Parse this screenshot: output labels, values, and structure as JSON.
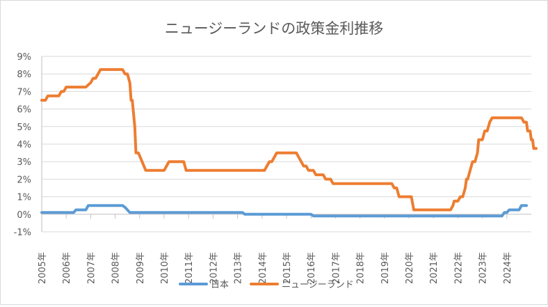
{
  "chart_data": {
    "type": "line",
    "title": "ニュージーランドの政策金利推移",
    "xlabel": "",
    "ylabel": "",
    "ylim": [
      -1,
      9
    ],
    "xlim": [
      2005.0,
      2025.0
    ],
    "y_ticks": [
      -1,
      0,
      1,
      2,
      3,
      4,
      5,
      6,
      7,
      8,
      9
    ],
    "y_tick_labels": [
      "-1%",
      "0%",
      "1%",
      "2%",
      "3%",
      "4%",
      "5%",
      "6%",
      "7%",
      "8%",
      "9%"
    ],
    "x_ticks": [
      2005,
      2006,
      2007,
      2008,
      2009,
      2010,
      2011,
      2012,
      2013,
      2014,
      2015,
      2016,
      2017,
      2018,
      2019,
      2020,
      2021,
      2022,
      2023,
      2024
    ],
    "x_tick_labels": [
      "2005年",
      "2006年",
      "2007年",
      "2008年",
      "2009年",
      "2010年",
      "2011年",
      "2012年",
      "2013年",
      "2014年",
      "2015年",
      "2016年",
      "2017年",
      "2018年",
      "2019年",
      "2020年",
      "2021年",
      "2022年",
      "2023年",
      "2024年"
    ],
    "legend_position": "bottom",
    "series": [
      {
        "name": "日本",
        "color": "#5b9bd5",
        "points": [
          [
            2005.0,
            0.1
          ],
          [
            2006.3,
            0.1
          ],
          [
            2006.4,
            0.25
          ],
          [
            2006.8,
            0.25
          ],
          [
            2006.9,
            0.5
          ],
          [
            2008.3,
            0.5
          ],
          [
            2008.4,
            0.4
          ],
          [
            2008.6,
            0.1
          ],
          [
            2013.2,
            0.1
          ],
          [
            2013.3,
            0.0
          ],
          [
            2016.0,
            0.0
          ],
          [
            2016.1,
            -0.1
          ],
          [
            2023.8,
            -0.1
          ],
          [
            2023.9,
            0.1
          ],
          [
            2024.0,
            0.1
          ],
          [
            2024.1,
            0.25
          ],
          [
            2024.5,
            0.25
          ],
          [
            2024.6,
            0.5
          ],
          [
            2024.8,
            0.5
          ]
        ]
      },
      {
        "name": "ニュージーランド",
        "color": "#ed7d31",
        "points": [
          [
            2005.0,
            6.5
          ],
          [
            2005.15,
            6.5
          ],
          [
            2005.25,
            6.75
          ],
          [
            2005.7,
            6.75
          ],
          [
            2005.8,
            7.0
          ],
          [
            2005.9,
            7.0
          ],
          [
            2006.0,
            7.25
          ],
          [
            2006.8,
            7.25
          ],
          [
            2007.0,
            7.5
          ],
          [
            2007.1,
            7.75
          ],
          [
            2007.2,
            7.75
          ],
          [
            2007.3,
            8.0
          ],
          [
            2007.4,
            8.25
          ],
          [
            2008.3,
            8.25
          ],
          [
            2008.4,
            8.0
          ],
          [
            2008.5,
            8.0
          ],
          [
            2008.6,
            7.5
          ],
          [
            2008.65,
            6.5
          ],
          [
            2008.7,
            6.5
          ],
          [
            2008.8,
            5.0
          ],
          [
            2008.85,
            3.5
          ],
          [
            2008.95,
            3.5
          ],
          [
            2009.1,
            3.0
          ],
          [
            2009.25,
            2.5
          ],
          [
            2009.9,
            2.5
          ],
          [
            2010.0,
            2.5
          ],
          [
            2010.1,
            2.75
          ],
          [
            2010.2,
            3.0
          ],
          [
            2010.8,
            3.0
          ],
          [
            2010.9,
            2.5
          ],
          [
            2013.9,
            2.5
          ],
          [
            2014.1,
            2.5
          ],
          [
            2014.2,
            2.75
          ],
          [
            2014.3,
            3.0
          ],
          [
            2014.4,
            3.0
          ],
          [
            2014.5,
            3.25
          ],
          [
            2014.6,
            3.5
          ],
          [
            2015.4,
            3.5
          ],
          [
            2015.5,
            3.25
          ],
          [
            2015.6,
            3.0
          ],
          [
            2015.7,
            2.75
          ],
          [
            2015.8,
            2.75
          ],
          [
            2015.9,
            2.5
          ],
          [
            2016.1,
            2.5
          ],
          [
            2016.2,
            2.25
          ],
          [
            2016.5,
            2.25
          ],
          [
            2016.6,
            2.0
          ],
          [
            2016.8,
            2.0
          ],
          [
            2016.9,
            1.75
          ],
          [
            2019.3,
            1.75
          ],
          [
            2019.4,
            1.5
          ],
          [
            2019.5,
            1.5
          ],
          [
            2019.6,
            1.0
          ],
          [
            2020.1,
            1.0
          ],
          [
            2020.2,
            0.25
          ],
          [
            2021.7,
            0.25
          ],
          [
            2021.8,
            0.5
          ],
          [
            2021.85,
            0.75
          ],
          [
            2022.0,
            0.75
          ],
          [
            2022.1,
            1.0
          ],
          [
            2022.2,
            1.0
          ],
          [
            2022.3,
            1.5
          ],
          [
            2022.35,
            2.0
          ],
          [
            2022.4,
            2.0
          ],
          [
            2022.5,
            2.5
          ],
          [
            2022.6,
            3.0
          ],
          [
            2022.7,
            3.0
          ],
          [
            2022.8,
            3.5
          ],
          [
            2022.85,
            4.25
          ],
          [
            2023.0,
            4.25
          ],
          [
            2023.1,
            4.75
          ],
          [
            2023.2,
            4.75
          ],
          [
            2023.3,
            5.25
          ],
          [
            2023.4,
            5.5
          ],
          [
            2024.6,
            5.5
          ],
          [
            2024.7,
            5.25
          ],
          [
            2024.8,
            5.25
          ],
          [
            2024.85,
            4.75
          ],
          [
            2024.95,
            4.75
          ],
          [
            2025.0,
            4.25
          ],
          [
            2025.05,
            4.25
          ],
          [
            2025.1,
            3.75
          ],
          [
            2025.2,
            3.75
          ]
        ]
      }
    ]
  }
}
